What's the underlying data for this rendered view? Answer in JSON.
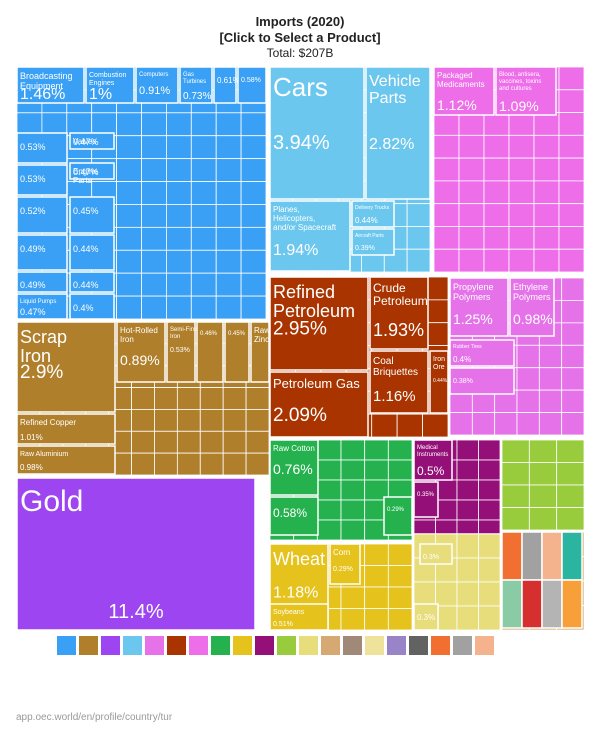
{
  "title": "Imports (2020)",
  "subtitle": "[Click to Select a Product]",
  "total": "Total: $207B",
  "source": "app.oec.world/en/profile/country/tur",
  "colors": {
    "machinery": "#3aa0f5",
    "transport": "#6cc7ee",
    "chemicals": "#ee6ee9",
    "minerals": "#a93400",
    "metals": "#b07f2b",
    "precious": "#9c45f0",
    "textiles": "#25b24e",
    "instruments": "#950f78",
    "plastics": "#e672ea",
    "vegetables": "#e6c21c",
    "misc": "#d6a872",
    "foodstuffs": "#98cc3c",
    "animal": "#e7dd7a",
    "stone": "#a08979",
    "paper": "#efe29a",
    "arts": "#9a84c8",
    "weapons": "#626262",
    "legend_extra": [
      "#f16f30",
      "#a1a1a1",
      "#f4b38c",
      "#2bb5a0",
      "#8acaa5",
      "#bfe6c6"
    ]
  },
  "chart_data": {
    "type": "treemap",
    "title": "Imports (2020)",
    "total": "$207B",
    "items": [
      {
        "name": "Broadcasting Equipment",
        "value": 1.46,
        "label": "1.46%"
      },
      {
        "name": "Combustion Engines",
        "value": 1.0,
        "label": "1%"
      },
      {
        "name": "Computers",
        "value": 0.91,
        "label": "0.91%"
      },
      {
        "name": "Gas Turbines",
        "value": 0.73,
        "label": "0.73%"
      },
      {
        "name": "",
        "value": 0.61,
        "label": "0.61%"
      },
      {
        "name": "",
        "value": 0.58,
        "label": "0.58%"
      },
      {
        "name": "Valves",
        "value": 0.47,
        "label": "0.47%"
      },
      {
        "name": "Engine Parts",
        "value": 0.47,
        "label": "0.47%"
      },
      {
        "name": "",
        "value": 0.53,
        "label": "0.53%"
      },
      {
        "name": "",
        "value": 0.53,
        "label": "0.53%"
      },
      {
        "name": "",
        "value": 0.52,
        "label": "0.52%"
      },
      {
        "name": "",
        "value": 0.45,
        "label": "0.45%"
      },
      {
        "name": "",
        "value": 0.49,
        "label": "0.49%"
      },
      {
        "name": "",
        "value": 0.44,
        "label": "0.44%"
      },
      {
        "name": "",
        "value": 0.49,
        "label": "0.49%"
      },
      {
        "name": "",
        "value": 0.44,
        "label": "0.44%"
      },
      {
        "name": "Liquid Pumps",
        "value": 0.47,
        "label": "0.47%"
      },
      {
        "name": "",
        "value": 0.4,
        "label": "0.4%"
      },
      {
        "name": "Cars",
        "value": 3.94,
        "label": "3.94%"
      },
      {
        "name": "Vehicle Parts",
        "value": 2.82,
        "label": "2.82%"
      },
      {
        "name": "Planes, Helicopters, and/or Spacecraft",
        "value": 1.94,
        "label": "1.94%"
      },
      {
        "name": "Delivery Trucks",
        "value": 0.44,
        "label": "0.44%"
      },
      {
        "name": "Aircraft Parts",
        "value": 0.39,
        "label": "0.39%"
      },
      {
        "name": "Packaged Medicaments",
        "value": 1.12,
        "label": "1.12%"
      },
      {
        "name": "Blood, antisera, vaccines, toxins and cultures",
        "value": 1.09,
        "label": "1.09%"
      },
      {
        "name": "Propylene Polymers",
        "value": 1.25,
        "label": "1.25%"
      },
      {
        "name": "Ethylene Polymers",
        "value": 0.98,
        "label": "0.98%"
      },
      {
        "name": "Rubber Tires",
        "value": 0.4,
        "label": "0.4%"
      },
      {
        "name": "",
        "value": 0.38,
        "label": "0.38%"
      },
      {
        "name": "Scrap Iron",
        "value": 2.9,
        "label": "2.9%"
      },
      {
        "name": "Refined Copper",
        "value": 1.01,
        "label": "1.01%"
      },
      {
        "name": "Raw Aluminium",
        "value": 0.98,
        "label": "0.98%"
      },
      {
        "name": "Hot-Rolled Iron",
        "value": 0.89,
        "label": "0.89%"
      },
      {
        "name": "Semi-Finished Iron",
        "value": 0.53,
        "label": "0.53%"
      },
      {
        "name": "",
        "value": 0.46,
        "label": "0.46%"
      },
      {
        "name": "",
        "value": 0.45,
        "label": "0.45%"
      },
      {
        "name": "Raw Zinc",
        "value": 0.3,
        "label": ""
      },
      {
        "name": "Refined Petroleum",
        "value": 2.95,
        "label": "2.95%"
      },
      {
        "name": "Crude Petroleum",
        "value": 1.93,
        "label": "1.93%"
      },
      {
        "name": "Petroleum Gas",
        "value": 2.09,
        "label": "2.09%"
      },
      {
        "name": "Coal Briquettes",
        "value": 1.16,
        "label": "1.16%"
      },
      {
        "name": "Iron Ore",
        "value": 0.44,
        "label": "0.44%"
      },
      {
        "name": "Raw Cotton",
        "value": 0.76,
        "label": "0.76%"
      },
      {
        "name": "",
        "value": 0.58,
        "label": "0.58%"
      },
      {
        "name": "",
        "value": 0.29,
        "label": "0.29%"
      },
      {
        "name": "Medical Instruments",
        "value": 0.5,
        "label": "0.5%"
      },
      {
        "name": "",
        "value": 0.35,
        "label": "0.35%"
      },
      {
        "name": "Gold",
        "value": 11.4,
        "label": "11.4%"
      },
      {
        "name": "Wheat",
        "value": 1.18,
        "label": "1.18%"
      },
      {
        "name": "Corn",
        "value": 0.29,
        "label": "0.29%"
      },
      {
        "name": "Soybeans",
        "value": 0.51,
        "label": "0.51%"
      },
      {
        "name": "",
        "value": 0.3,
        "label": "0.3%"
      },
      {
        "name": "",
        "value": 0.3,
        "label": "0.3%"
      }
    ]
  }
}
